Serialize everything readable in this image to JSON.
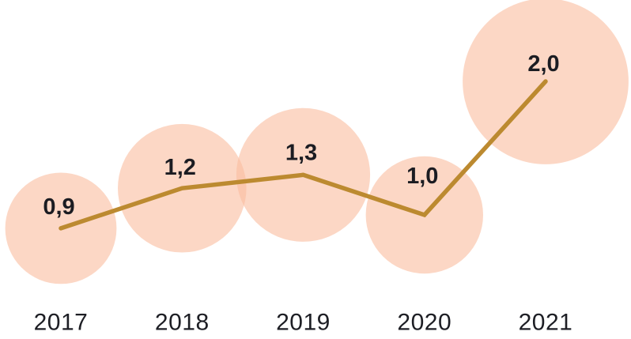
{
  "chart_data": {
    "type": "line",
    "marker_style": "bubble",
    "bubble_area_proportional_to_value": true,
    "categories": [
      "2017",
      "2018",
      "2019",
      "2020",
      "2021"
    ],
    "values": [
      0.9,
      1.2,
      1.3,
      1.0,
      2.0
    ],
    "point_labels": [
      "0,9",
      "1,2",
      "1,3",
      "1,0",
      "2,0"
    ],
    "decimal_separator": ",",
    "grid": false,
    "legend": false,
    "axes_visible": false,
    "x_axis_position": "bottom",
    "colors": {
      "bubble_fill": "#FABD9E",
      "bubble_opacity": 0.6,
      "line": "#BC8A30",
      "point_label_text": "#1B1C22",
      "axis_label_text": "#1D1E24",
      "background": "#FFFFFF"
    }
  }
}
